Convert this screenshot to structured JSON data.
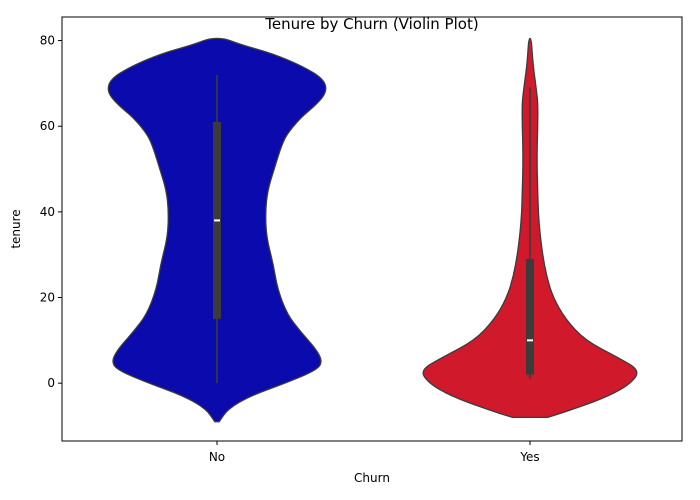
{
  "chart_data": {
    "type": "violin",
    "title": "Tenure by Churn (Violin Plot)",
    "xlabel": "Churn",
    "ylabel": "tenure",
    "ylim": [
      -13.5,
      85.5
    ],
    "yticks": [
      0,
      20,
      40,
      60,
      80
    ],
    "categories": [
      "No",
      "Yes"
    ],
    "series": [
      {
        "category": "No",
        "color": "#0a0aad",
        "min": 0,
        "q1": 15,
        "median": 38,
        "q3": 61,
        "max": 72,
        "density_profile": [
          [
            -9,
            0.02
          ],
          [
            -6,
            0.1
          ],
          [
            -3,
            0.3
          ],
          [
            0,
            0.62
          ],
          [
            3,
            0.9
          ],
          [
            5,
            0.96
          ],
          [
            8,
            0.9
          ],
          [
            12,
            0.76
          ],
          [
            16,
            0.64
          ],
          [
            22,
            0.55
          ],
          [
            28,
            0.51
          ],
          [
            34,
            0.45
          ],
          [
            40,
            0.44
          ],
          [
            45,
            0.46
          ],
          [
            50,
            0.52
          ],
          [
            55,
            0.58
          ],
          [
            58,
            0.63
          ],
          [
            62,
            0.76
          ],
          [
            65,
            0.9
          ],
          [
            68,
            1.0
          ],
          [
            71,
            0.97
          ],
          [
            74,
            0.78
          ],
          [
            77,
            0.5
          ],
          [
            79,
            0.22
          ],
          [
            80.5,
            0.07
          ]
        ]
      },
      {
        "category": "Yes",
        "color": "#d01a2c",
        "min": 1,
        "q1": 2,
        "median": 10,
        "q3": 29,
        "max": 69,
        "density_profile": [
          [
            -8,
            0.16
          ],
          [
            -6,
            0.4
          ],
          [
            -3,
            0.72
          ],
          [
            0,
            0.92
          ],
          [
            3,
            1.0
          ],
          [
            6,
            0.8
          ],
          [
            10,
            0.5
          ],
          [
            15,
            0.32
          ],
          [
            20,
            0.21
          ],
          [
            25,
            0.15
          ],
          [
            30,
            0.115
          ],
          [
            35,
            0.09
          ],
          [
            40,
            0.075
          ],
          [
            45,
            0.07
          ],
          [
            50,
            0.065
          ],
          [
            55,
            0.065
          ],
          [
            60,
            0.07
          ],
          [
            65,
            0.072
          ],
          [
            68,
            0.06
          ],
          [
            71,
            0.045
          ],
          [
            74,
            0.03
          ],
          [
            77,
            0.02
          ],
          [
            80.5,
            0.01
          ]
        ]
      }
    ]
  }
}
